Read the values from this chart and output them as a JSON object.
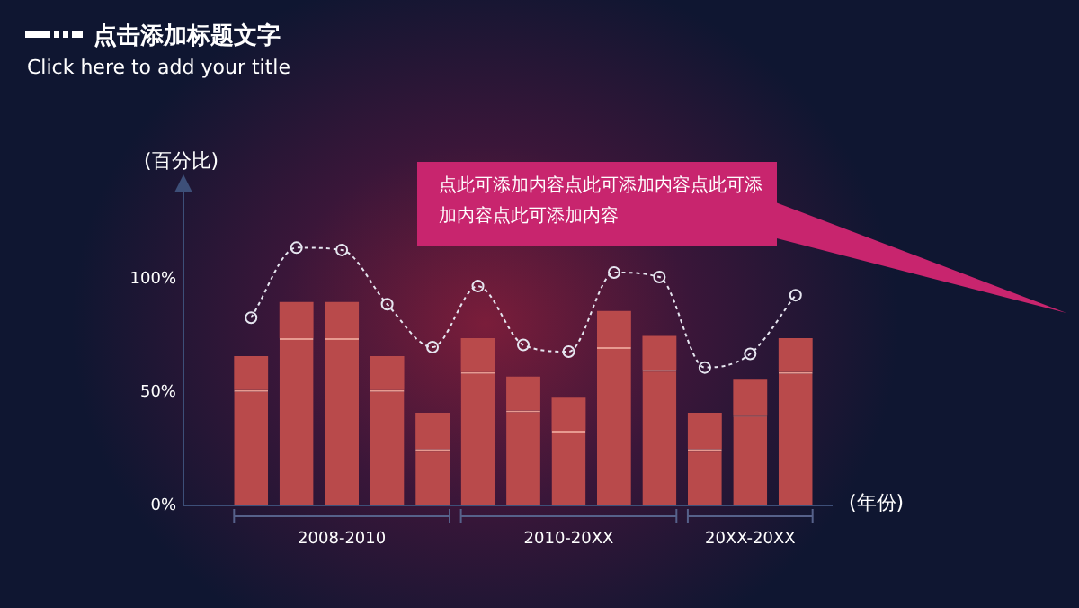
{
  "chart_data": {
    "type": "bar",
    "title": "点击添加标题文字",
    "subtitle": "Click here to add your title",
    "ylabel": "(百分比)",
    "xlabel": "(年份)",
    "categories": [
      null,
      null,
      null,
      null,
      null,
      null,
      null,
      null,
      null,
      null,
      null,
      null,
      null
    ],
    "stacked": true,
    "series": [
      {
        "color": "#b94a4b",
        "values": [
          51,
          74,
          74,
          51,
          25,
          59,
          42,
          33,
          70,
          60,
          25,
          40,
          59
        ]
      },
      {
        "color": "#b94a4b",
        "values": [
          15,
          16,
          16,
          15,
          16,
          15,
          15,
          15,
          16,
          15,
          16,
          16,
          15
        ]
      },
      {
        "type": "line",
        "color": "#e6e6f0",
        "marker": "circle",
        "line_style": "dotted",
        "values": [
          83,
          114,
          113,
          89,
          70,
          97,
          71,
          68,
          103,
          101,
          61,
          67,
          93
        ]
      }
    ],
    "ylim": [
      0,
      140
    ],
    "yticks": [
      {
        "value": 0,
        "label": "0%"
      },
      {
        "value": 50,
        "label": "50%"
      },
      {
        "value": 100,
        "label": "100%"
      }
    ],
    "grid": false,
    "legend": false,
    "annotations": [
      "2008-2010",
      "2010-20XX",
      "20XX-20XX",
      "点此可添加内容点此可添加内容点此可添加内容点此可添加内容"
    ]
  }
}
